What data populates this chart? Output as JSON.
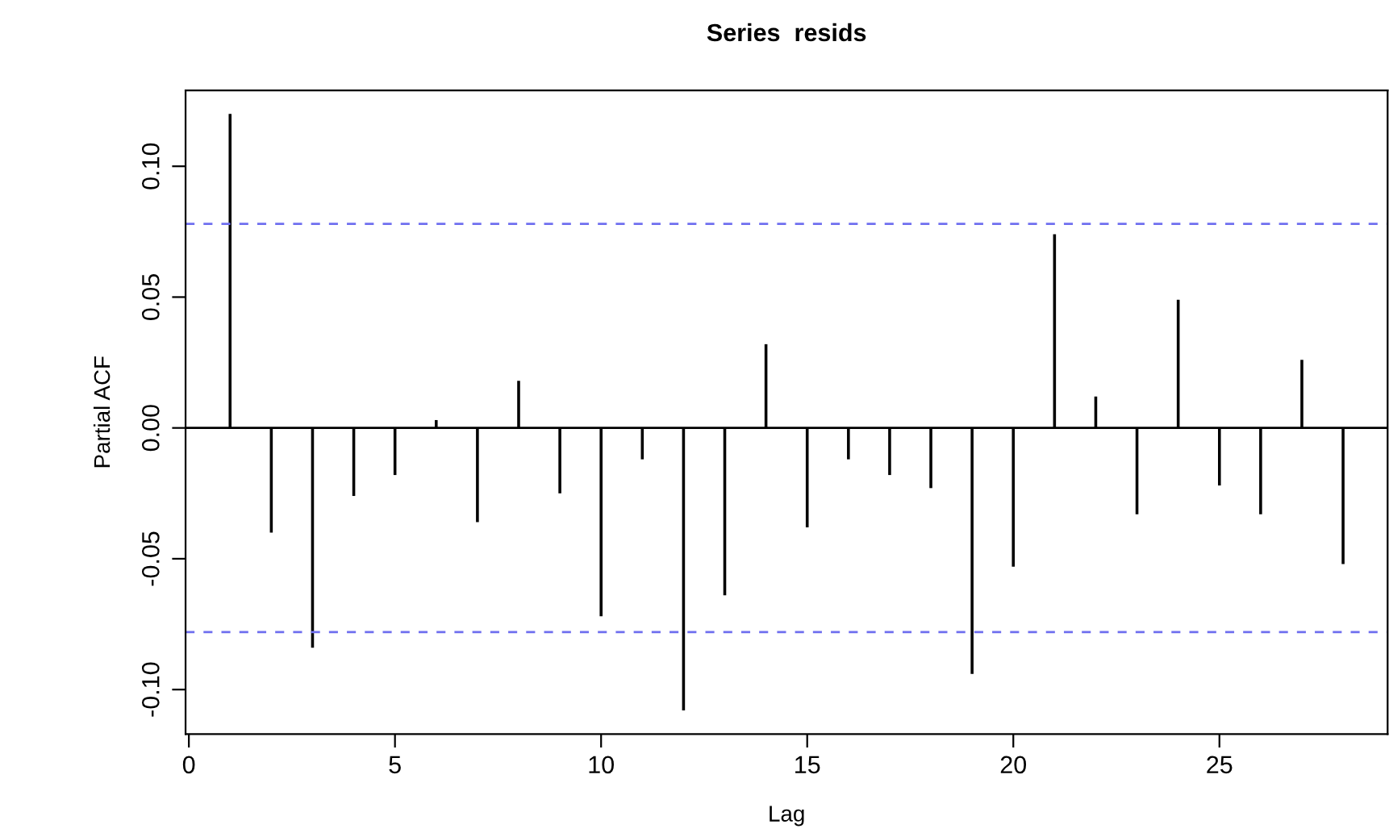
{
  "chart_data": {
    "type": "bar",
    "title": "Series  resids",
    "xlabel": "Lag",
    "ylabel": "Partial ACF",
    "x": [
      1,
      2,
      3,
      4,
      5,
      6,
      7,
      8,
      9,
      10,
      11,
      12,
      13,
      14,
      15,
      16,
      17,
      18,
      19,
      20,
      21,
      22,
      23,
      24,
      25,
      26,
      27,
      28
    ],
    "series": [
      {
        "color": "#000000",
        "values": [
          0.12,
          -0.04,
          -0.084,
          -0.026,
          -0.018,
          0.003,
          -0.036,
          0.018,
          -0.025,
          -0.072,
          -0.012,
          -0.108,
          -0.064,
          0.032,
          -0.038,
          -0.012,
          -0.018,
          -0.023,
          -0.094,
          -0.053,
          0.074,
          0.012,
          -0.033,
          0.049,
          -0.022,
          -0.033,
          0.026,
          -0.052
        ]
      }
    ],
    "xlim": [
      -0.08,
      29.08
    ],
    "ylim": [
      -0.117,
      0.129
    ],
    "xticks": [
      0,
      5,
      10,
      15,
      20,
      25
    ],
    "yticks": [
      {
        "value": -0.1,
        "label": "-0.10"
      },
      -0.05,
      {
        "value": 0,
        "label": "0.00"
      },
      0.05,
      {
        "value": 0.1,
        "label": "0.10"
      }
    ],
    "ref_lines": [
      {
        "axis": "y",
        "value": 0.078,
        "color": "#6f6fef",
        "line_style": "dashed"
      },
      {
        "axis": "y",
        "value": -0.078,
        "color": "#6f6fef",
        "line_style": "dashed"
      },
      {
        "axis": "y",
        "value": 0,
        "color": "#000000",
        "line_style": "solid"
      }
    ],
    "grid": false,
    "legend": false
  }
}
